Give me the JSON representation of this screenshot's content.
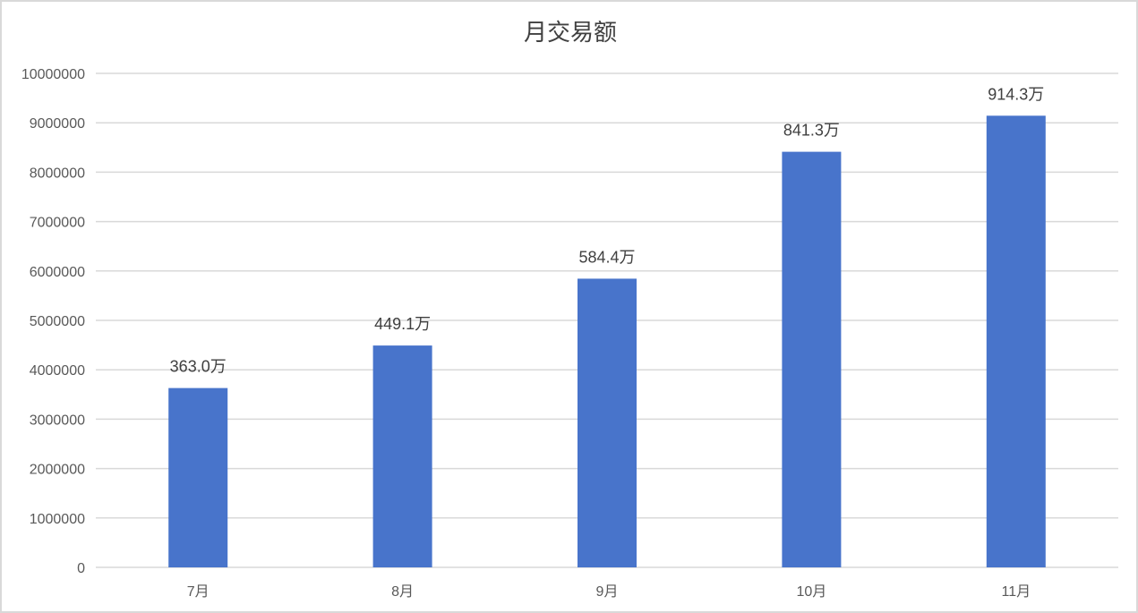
{
  "chart_data": {
    "type": "bar",
    "title": "月交易额",
    "xlabel": "",
    "ylabel": "",
    "categories": [
      "7月",
      "8月",
      "9月",
      "10月",
      "11月"
    ],
    "values": [
      3630000,
      4491000,
      5844000,
      8413000,
      9143000
    ],
    "data_labels": [
      "363.0万",
      "449.1万",
      "584.4万",
      "841.3万",
      "914.3万"
    ],
    "ylim": [
      0,
      10000000
    ],
    "yticks": [
      "0",
      "1000000",
      "2000000",
      "3000000",
      "4000000",
      "5000000",
      "6000000",
      "7000000",
      "8000000",
      "9000000",
      "10000000"
    ],
    "grid": true,
    "legend": "none",
    "colors": {
      "bar": "#4874cb",
      "grid": "#d9d9d9",
      "text": "#595959",
      "title": "#404040"
    }
  }
}
